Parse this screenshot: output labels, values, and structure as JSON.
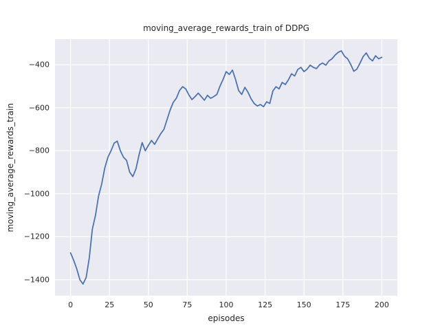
{
  "chart_data": {
    "type": "line",
    "title": "moving_average_rewards_train of DDPG",
    "xlabel": "episodes",
    "ylabel": "moving_average_rewards_train",
    "legend": null,
    "grid": true,
    "line_color": "#4c72b0",
    "plot_bg": "#eaeaf2",
    "grid_color": "#ffffff",
    "text_color": "#262626",
    "xlim": [
      -10,
      210
    ],
    "ylim": [
      -1474,
      -281
    ],
    "xticks": [
      0,
      25,
      50,
      75,
      100,
      125,
      150,
      175,
      200
    ],
    "xtick_labels": [
      "0",
      "25",
      "50",
      "75",
      "100",
      "125",
      "150",
      "175",
      "200"
    ],
    "yticks": [
      -400,
      -600,
      -800,
      -1000,
      -1200,
      -1400
    ],
    "ytick_labels": [
      "−400",
      "−600",
      "−800",
      "−1000",
      "−1200",
      "−1400"
    ],
    "x": [
      0,
      2,
      4,
      6,
      8,
      10,
      12,
      14,
      16,
      18,
      20,
      22,
      24,
      26,
      28,
      30,
      32,
      34,
      36,
      38,
      40,
      42,
      44,
      46,
      48,
      50,
      52,
      54,
      56,
      58,
      60,
      62,
      64,
      66,
      68,
      70,
      72,
      74,
      76,
      78,
      80,
      82,
      84,
      86,
      88,
      90,
      92,
      94,
      96,
      98,
      100,
      102,
      104,
      106,
      108,
      110,
      112,
      114,
      116,
      118,
      120,
      122,
      124,
      126,
      128,
      130,
      132,
      134,
      136,
      138,
      140,
      142,
      144,
      146,
      148,
      150,
      152,
      154,
      156,
      158,
      160,
      162,
      164,
      166,
      168,
      170,
      172,
      174,
      176,
      178,
      180,
      182,
      184,
      186,
      188,
      190,
      192,
      194,
      196,
      198,
      200
    ],
    "y": [
      -1275,
      -1310,
      -1350,
      -1400,
      -1420,
      -1390,
      -1300,
      -1165,
      -1100,
      -1010,
      -955,
      -880,
      -830,
      -800,
      -765,
      -755,
      -800,
      -830,
      -845,
      -900,
      -920,
      -885,
      -820,
      -762,
      -800,
      -775,
      -752,
      -770,
      -745,
      -720,
      -700,
      -655,
      -610,
      -575,
      -555,
      -520,
      -502,
      -512,
      -540,
      -562,
      -548,
      -532,
      -548,
      -565,
      -542,
      -556,
      -548,
      -538,
      -500,
      -468,
      -432,
      -445,
      -425,
      -468,
      -520,
      -538,
      -505,
      -528,
      -558,
      -580,
      -592,
      -585,
      -595,
      -572,
      -580,
      -522,
      -502,
      -512,
      -482,
      -492,
      -470,
      -442,
      -452,
      -422,
      -412,
      -432,
      -420,
      -402,
      -412,
      -418,
      -400,
      -392,
      -402,
      -382,
      -372,
      -355,
      -342,
      -335,
      -360,
      -372,
      -398,
      -430,
      -420,
      -392,
      -362,
      -345,
      -370,
      -382,
      -358,
      -372,
      -365
    ]
  }
}
